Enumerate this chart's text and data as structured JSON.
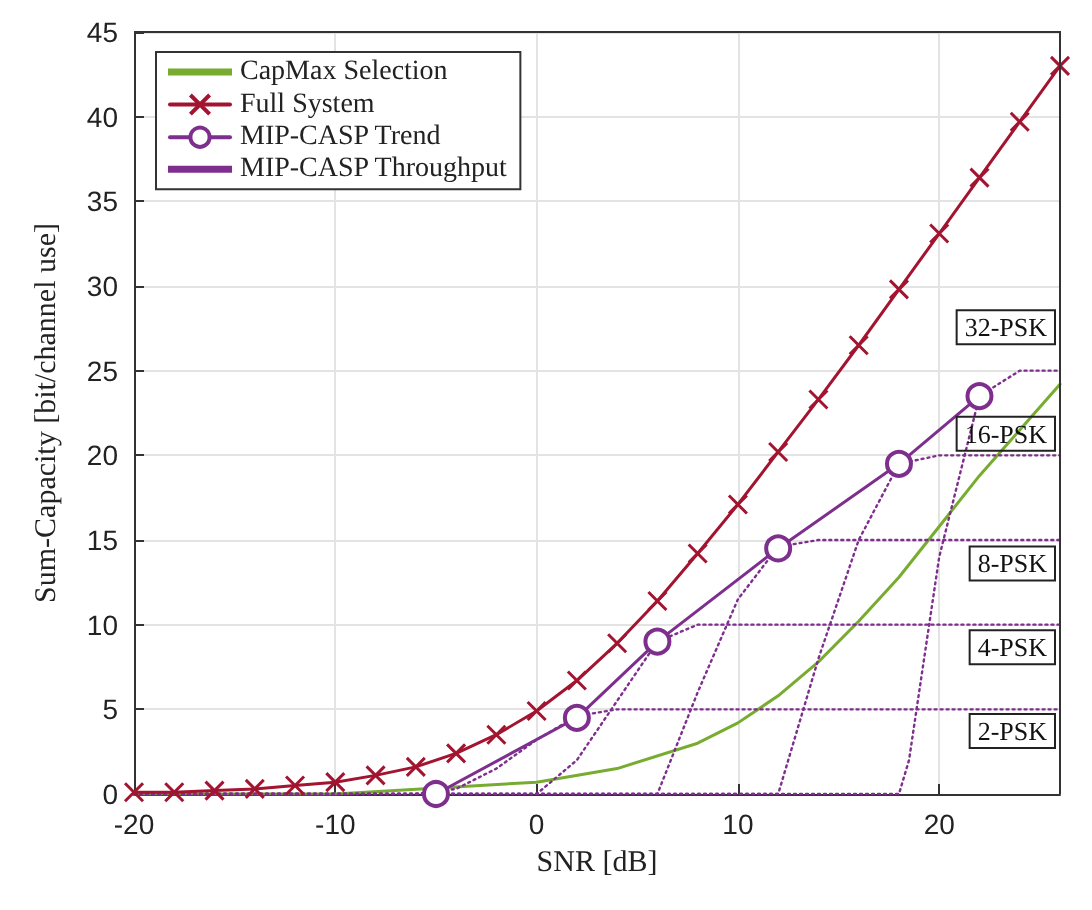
{
  "chart_data": {
    "type": "line",
    "xlabel": "SNR [dB]",
    "ylabel": "Sum-Capacity [bit/channel use]",
    "xlim": [
      -20,
      26
    ],
    "ylim": [
      0,
      45
    ],
    "xticks": [
      -20,
      -10,
      0,
      10,
      20
    ],
    "yticks": [
      0,
      5,
      10,
      15,
      20,
      25,
      30,
      35,
      40,
      45
    ],
    "grid": true,
    "legend": "top left",
    "series": [
      {
        "name": "CapMax Selection",
        "color": "#77ac30",
        "marker": "none",
        "line_style": "solid",
        "x": [
          -20,
          -10,
          0,
          4,
          8,
          10,
          12,
          14,
          16,
          18,
          20,
          22,
          24,
          26
        ],
        "values": [
          0,
          0,
          0.7,
          1.5,
          3,
          4.2,
          5.8,
          7.8,
          10.2,
          12.8,
          15.8,
          18.8,
          21.5,
          24.2
        ]
      },
      {
        "name": "Full System",
        "color": "#a2142f",
        "marker": "cross",
        "line_style": "solid",
        "x": [
          -20,
          -18,
          -16,
          -14,
          -12,
          -10,
          -8,
          -6,
          -4,
          -2,
          0,
          2,
          4,
          6,
          8,
          10,
          12,
          14,
          16,
          18,
          20,
          22,
          24,
          26
        ],
        "values": [
          0.1,
          0.1,
          0.2,
          0.3,
          0.5,
          0.7,
          1.1,
          1.6,
          2.4,
          3.5,
          4.9,
          6.7,
          8.9,
          11.4,
          14.2,
          17.1,
          20.2,
          23.3,
          26.5,
          29.8,
          33.1,
          36.4,
          39.7,
          43
        ]
      },
      {
        "name": "MIP-CASP Trend",
        "color": "#7e2f8e",
        "marker": "circle",
        "line_style": "solid",
        "x": [
          -5,
          2,
          6,
          12,
          18,
          22
        ],
        "values": [
          0,
          4.5,
          9,
          14.5,
          19.5,
          23.5
        ]
      },
      {
        "name": "MIP-CASP Throughput",
        "color": "#7e2f8e",
        "marker": "none",
        "line_style": "dotted",
        "x": [
          -20,
          -6,
          -4,
          -2,
          0,
          2,
          4,
          26
        ],
        "values": [
          0,
          0,
          0.3,
          1.5,
          3.2,
          4.6,
          5,
          5
        ]
      },
      {
        "color": "#7e2f8e",
        "marker": "none",
        "line_style": "dotted",
        "x": [
          -20,
          0,
          2,
          4,
          6,
          8,
          26
        ],
        "values": [
          0,
          0,
          2,
          5.5,
          9,
          10,
          10
        ]
      },
      {
        "color": "#7e2f8e",
        "marker": "none",
        "line_style": "dotted",
        "x": [
          -20,
          6,
          8,
          10,
          12,
          14,
          26
        ],
        "values": [
          0,
          0,
          6,
          11.5,
          14.6,
          15,
          15
        ]
      },
      {
        "color": "#7e2f8e",
        "marker": "none",
        "line_style": "dotted",
        "x": [
          -20,
          12,
          14,
          16,
          18,
          20,
          26
        ],
        "values": [
          0,
          0,
          8,
          15,
          19.5,
          20,
          20
        ]
      },
      {
        "color": "#7e2f8e",
        "marker": "none",
        "line_style": "dotted",
        "x": [
          -20,
          18,
          18.5,
          20,
          22,
          24,
          26
        ],
        "values": [
          0,
          0,
          2,
          14,
          23.5,
          25,
          25
        ]
      }
    ],
    "annotations": [
      "32-PSK",
      "16-PSK",
      "8-PSK",
      "4-PSK",
      "2-PSK"
    ]
  }
}
